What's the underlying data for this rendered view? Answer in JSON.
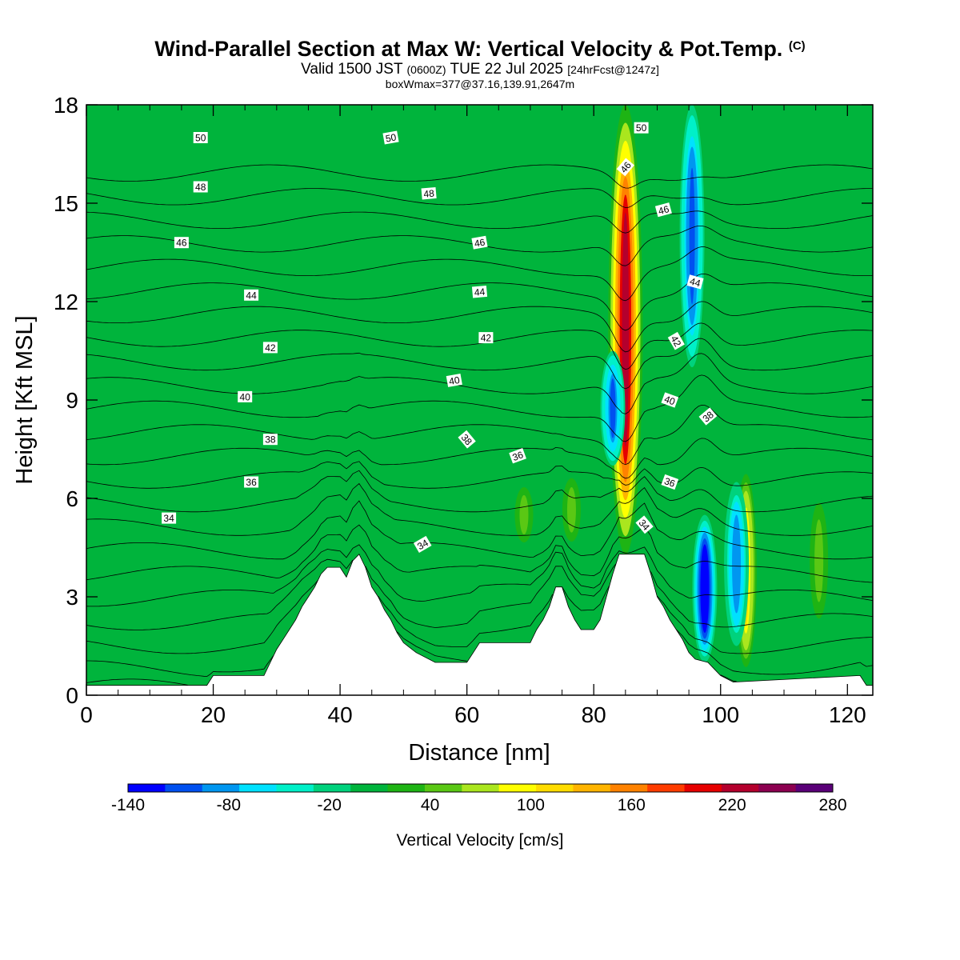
{
  "title": {
    "main": "Wind-Parallel Section at Max W: Vertical Velocity & Pot.Temp.",
    "main_sup": "(C)",
    "valid_a": "Valid 1500 JST",
    "valid_b": "(0600Z)",
    "valid_c": "TUE 22 Jul 2025",
    "valid_d": "[24hrFcst@1247z]",
    "box": "boxWmax=377@37.16,139.91,2647m"
  },
  "chart_data": {
    "type": "heatmap",
    "xlabel": "Distance [nm]",
    "ylabel": "Height [Kft MSL]",
    "xlim": [
      0,
      124
    ],
    "ylim": [
      0,
      18
    ],
    "x_ticks": [
      "0",
      "20",
      "40",
      "60",
      "80",
      "100",
      "120"
    ],
    "y_ticks": [
      "0",
      "3",
      "6",
      "9",
      "12",
      "15",
      "18"
    ],
    "colorbar": {
      "label": "Vertical Velocity [cm/s]",
      "min": -140,
      "max": 280,
      "tick_labels": [
        "-140",
        "-80",
        "-20",
        "40",
        "100",
        "160",
        "220",
        "280"
      ],
      "colors": [
        "#0000ff",
        "#0050f0",
        "#0096f0",
        "#00e1ff",
        "#00f0c8",
        "#00d27d",
        "#00b43c",
        "#1eb414",
        "#5ac814",
        "#aae61e",
        "#ffff00",
        "#ffdc00",
        "#ffb400",
        "#ff8200",
        "#ff3c00",
        "#e60000",
        "#b4002d",
        "#8c0050",
        "#5a0078"
      ]
    },
    "background_value": -5,
    "updrafts": [
      {
        "x": 85,
        "bottom": 4.3,
        "top": 18,
        "peak": 230
      },
      {
        "x": 104,
        "bottom": 0.6,
        "top": 7,
        "peak": 110
      },
      {
        "x": 76.5,
        "bottom": 4.5,
        "top": 6.8,
        "peak": 50
      },
      {
        "x": 69,
        "bottom": 4.5,
        "top": 6.5,
        "peak": 45
      },
      {
        "x": 115.5,
        "bottom": 2,
        "top": 6.2,
        "peak": 45
      }
    ],
    "downdrafts": [
      {
        "x": 97.5,
        "bottom": 1,
        "top": 5.5,
        "peak": -140
      },
      {
        "x": 102.5,
        "bottom": 1.5,
        "top": 6.5,
        "peak": -90
      },
      {
        "x": 95.5,
        "bottom": 10,
        "top": 18,
        "peak": -110
      },
      {
        "x": 83,
        "bottom": 7,
        "top": 10.5,
        "peak": -100
      }
    ],
    "terrain": [
      [
        0,
        0.3
      ],
      [
        19,
        0.3
      ],
      [
        20,
        0.6
      ],
      [
        28,
        0.6
      ],
      [
        29,
        1
      ],
      [
        30,
        1.4
      ],
      [
        31,
        1.7
      ],
      [
        32,
        2
      ],
      [
        33,
        2.3
      ],
      [
        34,
        2.7
      ],
      [
        35,
        3
      ],
      [
        36,
        3.3
      ],
      [
        37,
        3.7
      ],
      [
        38,
        3.9
      ],
      [
        40,
        3.9
      ],
      [
        41,
        3.6
      ],
      [
        42,
        4.1
      ],
      [
        43,
        4.3
      ],
      [
        44,
        3.9
      ],
      [
        45,
        3.3
      ],
      [
        46,
        3
      ],
      [
        47,
        2.6
      ],
      [
        48,
        2.3
      ],
      [
        49,
        1.9
      ],
      [
        50,
        1.6
      ],
      [
        52,
        1.3
      ],
      [
        55,
        1
      ],
      [
        60,
        1
      ],
      [
        61,
        1.3
      ],
      [
        62,
        1.6
      ],
      [
        70,
        1.6
      ],
      [
        71,
        2
      ],
      [
        72,
        2.3
      ],
      [
        73,
        2.7
      ],
      [
        74,
        3.3
      ],
      [
        75,
        3.3
      ],
      [
        76,
        2.7
      ],
      [
        77,
        2.3
      ],
      [
        78,
        2
      ],
      [
        80,
        2
      ],
      [
        81,
        2.3
      ],
      [
        82,
        3
      ],
      [
        83,
        3.7
      ],
      [
        84,
        4.3
      ],
      [
        88,
        4.3
      ],
      [
        89,
        3.7
      ],
      [
        90,
        3
      ],
      [
        91,
        2.7
      ],
      [
        92,
        2.3
      ],
      [
        93,
        2
      ],
      [
        94,
        1.7
      ],
      [
        95,
        1.3
      ],
      [
        96,
        1.1
      ],
      [
        98,
        1
      ],
      [
        100,
        0.6
      ],
      [
        102,
        0.4
      ],
      [
        122,
        0.6
      ],
      [
        123,
        0.3
      ],
      [
        124,
        0.3
      ]
    ],
    "theta_labels": [
      {
        "x": 18,
        "y": 17,
        "text": "50",
        "angle": 0
      },
      {
        "x": 48,
        "y": 17,
        "text": "50",
        "angle": -10
      },
      {
        "x": 87.5,
        "y": 17.3,
        "text": "50",
        "angle": 0
      },
      {
        "x": 18,
        "y": 15.5,
        "text": "48",
        "angle": 0
      },
      {
        "x": 54,
        "y": 15.3,
        "text": "48",
        "angle": -5
      },
      {
        "x": 85,
        "y": 16.1,
        "text": "46",
        "angle": -50
      },
      {
        "x": 91,
        "y": 14.8,
        "text": "46",
        "angle": -15
      },
      {
        "x": 15,
        "y": 13.8,
        "text": "46",
        "angle": 0
      },
      {
        "x": 62,
        "y": 13.8,
        "text": "46",
        "angle": -10
      },
      {
        "x": 26,
        "y": 12.2,
        "text": "44",
        "angle": 0
      },
      {
        "x": 62,
        "y": 12.3,
        "text": "44",
        "angle": -5
      },
      {
        "x": 96,
        "y": 12.6,
        "text": "44",
        "angle": 15
      },
      {
        "x": 29,
        "y": 10.6,
        "text": "42",
        "angle": 0
      },
      {
        "x": 63,
        "y": 10.9,
        "text": "42",
        "angle": 0
      },
      {
        "x": 93,
        "y": 10.8,
        "text": "42",
        "angle": 60
      },
      {
        "x": 25,
        "y": 9.1,
        "text": "40",
        "angle": 0
      },
      {
        "x": 58,
        "y": 9.6,
        "text": "40",
        "angle": -10
      },
      {
        "x": 92,
        "y": 9,
        "text": "40",
        "angle": 20
      },
      {
        "x": 98,
        "y": 8.5,
        "text": "38",
        "angle": -40
      },
      {
        "x": 29,
        "y": 7.8,
        "text": "38",
        "angle": 0
      },
      {
        "x": 60,
        "y": 7.8,
        "text": "38",
        "angle": 50
      },
      {
        "x": 68,
        "y": 7.3,
        "text": "36",
        "angle": -20
      },
      {
        "x": 26,
        "y": 6.5,
        "text": "36",
        "angle": 0
      },
      {
        "x": 92,
        "y": 6.5,
        "text": "36",
        "angle": 20
      },
      {
        "x": 13,
        "y": 5.4,
        "text": "34",
        "angle": 0
      },
      {
        "x": 53,
        "y": 4.6,
        "text": "34",
        "angle": -30
      },
      {
        "x": 88,
        "y": 5.2,
        "text": "34",
        "angle": 50
      }
    ]
  }
}
